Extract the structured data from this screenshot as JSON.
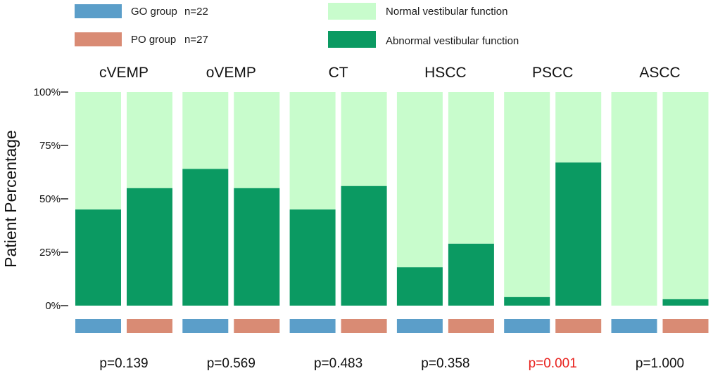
{
  "legend": {
    "groups": [
      {
        "key": "go",
        "label": "GO group",
        "n_label": "n=22",
        "color": "#5b9ec9"
      },
      {
        "key": "po",
        "label": "PO group",
        "n_label": "n=27",
        "color": "#d98b74"
      }
    ],
    "outcomes": [
      {
        "key": "normal",
        "label": "Normal vestibular function",
        "color": "#c8fccc"
      },
      {
        "key": "abnormal",
        "label": "Abnormal vestibular function",
        "color": "#0b9a62"
      }
    ]
  },
  "chart_data": {
    "type": "bar",
    "stacked": true,
    "ylabel": "Patient  Percentage",
    "ylim": [
      0,
      100
    ],
    "yticks": [
      {
        "value": 100,
        "label": "100%"
      },
      {
        "value": 75,
        "label": "75%"
      },
      {
        "value": 50,
        "label": "50%"
      },
      {
        "value": 25,
        "label": "25%"
      },
      {
        "value": 0,
        "label": "0%"
      }
    ],
    "categories": [
      "cVEMP",
      "oVEMP",
      "CT",
      "HSCC",
      "PSCC",
      "ASCC"
    ],
    "series": [
      {
        "name": "GO group",
        "abnormal_percent": [
          45,
          64,
          45,
          18,
          4,
          0
        ]
      },
      {
        "name": "PO group",
        "abnormal_percent": [
          55,
          55,
          56,
          29,
          67,
          3
        ]
      }
    ],
    "p_values": [
      {
        "label": "p=0.139",
        "color": "#111111"
      },
      {
        "label": "p=0.569",
        "color": "#111111"
      },
      {
        "label": "p=0.483",
        "color": "#111111"
      },
      {
        "label": "p=0.358",
        "color": "#111111"
      },
      {
        "label": "p=0.001",
        "color": "#e8211d"
      },
      {
        "label": "p=1.000",
        "color": "#111111"
      }
    ]
  }
}
